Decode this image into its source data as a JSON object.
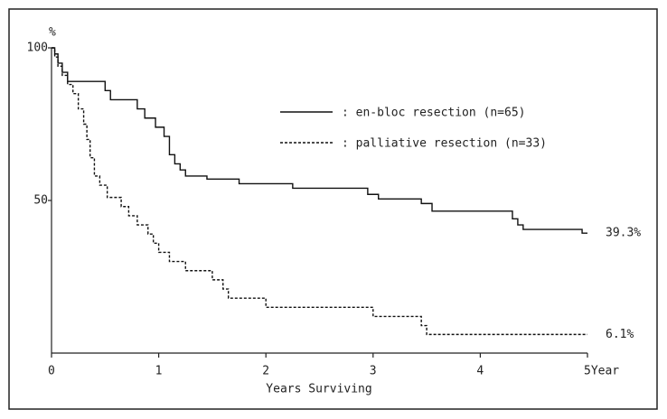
{
  "chart_data": {
    "type": "step",
    "x_label": "Years Surviving",
    "y_unit": "%",
    "xlim": [
      0,
      5
    ],
    "xticks": [
      0,
      1,
      2,
      3,
      4,
      {
        "value": 5,
        "label": "5Year"
      }
    ],
    "ylim": [
      0,
      100
    ],
    "yticks": [
      50,
      100
    ],
    "series": [
      {
        "name": ": en-bloc resection (n=65)",
        "color": "#111",
        "dash": "solid",
        "end_label": "39.3%",
        "x": [
          0,
          0.03,
          0.06,
          0.1,
          0.15,
          0.5,
          0.55,
          0.8,
          0.87,
          0.97,
          1.05,
          1.1,
          1.15,
          1.2,
          1.25,
          1.45,
          1.75,
          2.25,
          2.95,
          3.05,
          3.45,
          3.55,
          4.3,
          4.35,
          4.4,
          4.95,
          5
        ],
        "values": [
          100,
          98,
          95,
          92,
          89,
          86,
          83,
          80,
          77,
          74,
          71,
          65,
          62,
          60,
          58,
          57,
          55.5,
          54,
          52,
          50.5,
          49,
          46.5,
          44,
          42,
          40.5,
          39.3,
          39.3
        ]
      },
      {
        "name": ": palliative resection (n=33)",
        "color": "#111",
        "dash": "dashed",
        "end_label": "6.1%",
        "x": [
          0,
          0.03,
          0.06,
          0.1,
          0.15,
          0.2,
          0.25,
          0.3,
          0.33,
          0.36,
          0.4,
          0.45,
          0.52,
          0.65,
          0.72,
          0.8,
          0.9,
          0.95,
          1.0,
          1.1,
          1.25,
          1.5,
          1.6,
          1.65,
          2.0,
          3.0,
          3.45,
          3.5,
          5
        ],
        "values": [
          100,
          97,
          94,
          91,
          88,
          85,
          80,
          75,
          70,
          64,
          58,
          55,
          51,
          48,
          45,
          42,
          39,
          36,
          33,
          30,
          27,
          24,
          21,
          18,
          15,
          12,
          9,
          6.1,
          6.1
        ]
      }
    ]
  }
}
